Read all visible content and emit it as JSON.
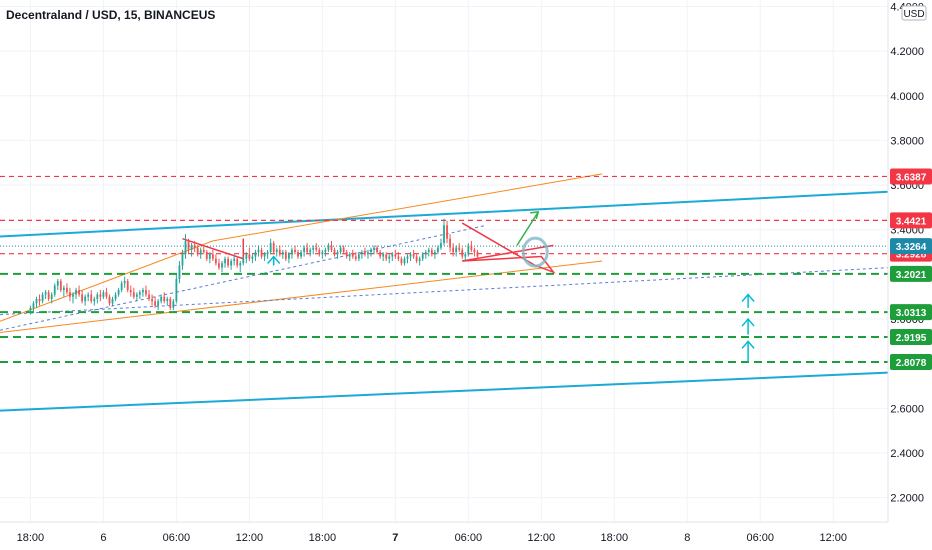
{
  "chart_data": {
    "type": "candlestick",
    "title": "Decentraland / USD, 15, BINANCEUS",
    "currency": "USD",
    "ylim": [
      2.1,
      4.4
    ],
    "y_ticks": [
      "4.4000",
      "4.2000",
      "4.0000",
      "3.8000",
      "3.6000",
      "3.4000",
      "3.0000",
      "2.6000",
      "2.4000",
      "2.2000"
    ],
    "y_tick_values": [
      4.4,
      4.2,
      4.0,
      3.8,
      3.6,
      3.4,
      3.0,
      2.6,
      2.4,
      2.2
    ],
    "x_ticks": [
      {
        "label": "18:00",
        "bar": 0
      },
      {
        "label": "6",
        "bar": 24
      },
      {
        "label": "06:00",
        "bar": 48
      },
      {
        "label": "12:00",
        "bar": 72
      },
      {
        "label": "18:00",
        "bar": 96
      },
      {
        "label": "7",
        "bar": 120
      },
      {
        "label": "06:00",
        "bar": 144
      },
      {
        "label": "12:00",
        "bar": 168
      },
      {
        "label": "18:00",
        "bar": 192
      },
      {
        "label": "8",
        "bar": 216
      },
      {
        "label": "06:00",
        "bar": 240
      },
      {
        "label": "12:00",
        "bar": 264
      }
    ],
    "bar_domain": [
      -10,
      282
    ],
    "bold_x_ticks": [
      "7"
    ],
    "colors": {
      "up": "#26a69a",
      "down": "#ef5350",
      "support_green": "#1e9e3a",
      "resistance_red": "#f23645",
      "channel_cyan": "#1ba9d6",
      "channel_orange": "#f6891f",
      "trend_blue": "#5b7bd6",
      "current_price": "#1e88a8",
      "arrow_green": "#33b249",
      "arrow_cyan": "#00bcd4",
      "grid": "#f0f3fa"
    },
    "candles": [
      [
        3.04,
        3.06,
        3.02,
        3.05
      ],
      [
        3.05,
        3.08,
        3.03,
        3.07
      ],
      [
        3.07,
        3.1,
        3.05,
        3.09
      ],
      [
        3.09,
        3.11,
        3.06,
        3.08
      ],
      [
        3.08,
        3.12,
        3.07,
        3.11
      ],
      [
        3.11,
        3.13,
        3.09,
        3.12
      ],
      [
        3.12,
        3.13,
        3.08,
        3.09
      ],
      [
        3.09,
        3.12,
        3.07,
        3.11
      ],
      [
        3.11,
        3.16,
        3.1,
        3.15
      ],
      [
        3.15,
        3.18,
        3.13,
        3.17
      ],
      [
        3.17,
        3.18,
        3.12,
        3.13
      ],
      [
        3.13,
        3.15,
        3.1,
        3.14
      ],
      [
        3.14,
        3.16,
        3.11,
        3.12
      ],
      [
        3.12,
        3.14,
        3.08,
        3.1
      ],
      [
        3.1,
        3.12,
        3.07,
        3.11
      ],
      [
        3.11,
        3.14,
        3.09,
        3.13
      ],
      [
        3.13,
        3.15,
        3.1,
        3.11
      ],
      [
        3.11,
        3.13,
        3.07,
        3.08
      ],
      [
        3.08,
        3.11,
        3.06,
        3.1
      ],
      [
        3.1,
        3.12,
        3.08,
        3.11
      ],
      [
        3.11,
        3.13,
        3.07,
        3.08
      ],
      [
        3.08,
        3.1,
        3.06,
        3.09
      ],
      [
        3.09,
        3.12,
        3.07,
        3.11
      ],
      [
        3.11,
        3.13,
        3.08,
        3.1
      ],
      [
        3.1,
        3.13,
        3.09,
        3.12
      ],
      [
        3.12,
        3.14,
        3.09,
        3.1
      ],
      [
        3.1,
        3.11,
        3.06,
        3.07
      ],
      [
        3.07,
        3.1,
        3.06,
        3.09
      ],
      [
        3.09,
        3.12,
        3.08,
        3.11
      ],
      [
        3.11,
        3.14,
        3.1,
        3.13
      ],
      [
        3.13,
        3.17,
        3.12,
        3.16
      ],
      [
        3.16,
        3.19,
        3.14,
        3.17
      ],
      [
        3.17,
        3.18,
        3.12,
        3.13
      ],
      [
        3.13,
        3.15,
        3.1,
        3.12
      ],
      [
        3.12,
        3.14,
        3.09,
        3.1
      ],
      [
        3.1,
        3.12,
        3.08,
        3.11
      ],
      [
        3.11,
        3.13,
        3.09,
        3.12
      ],
      [
        3.12,
        3.14,
        3.1,
        3.13
      ],
      [
        3.13,
        3.15,
        3.1,
        3.11
      ],
      [
        3.11,
        3.13,
        3.08,
        3.09
      ],
      [
        3.09,
        3.11,
        3.06,
        3.08
      ],
      [
        3.08,
        3.1,
        3.05,
        3.06
      ],
      [
        3.06,
        3.09,
        3.04,
        3.08
      ],
      [
        3.08,
        3.11,
        3.07,
        3.1
      ],
      [
        3.1,
        3.12,
        3.07,
        3.08
      ],
      [
        3.08,
        3.1,
        3.06,
        3.09
      ],
      [
        3.09,
        3.1,
        3.04,
        3.05
      ],
      [
        3.05,
        3.09,
        3.04,
        3.08
      ],
      [
        3.08,
        3.2,
        3.07,
        3.18
      ],
      [
        3.18,
        3.26,
        3.16,
        3.24
      ],
      [
        3.24,
        3.31,
        3.22,
        3.29
      ],
      [
        3.29,
        3.38,
        3.27,
        3.35
      ],
      [
        3.35,
        3.36,
        3.29,
        3.31
      ],
      [
        3.31,
        3.34,
        3.28,
        3.33
      ],
      [
        3.33,
        3.35,
        3.3,
        3.32
      ],
      [
        3.32,
        3.33,
        3.28,
        3.29
      ],
      [
        3.29,
        3.32,
        3.27,
        3.31
      ],
      [
        3.31,
        3.33,
        3.29,
        3.3
      ],
      [
        3.3,
        3.31,
        3.26,
        3.27
      ],
      [
        3.27,
        3.3,
        3.25,
        3.29
      ],
      [
        3.29,
        3.31,
        3.26,
        3.27
      ],
      [
        3.27,
        3.29,
        3.24,
        3.25
      ],
      [
        3.25,
        3.27,
        3.22,
        3.23
      ],
      [
        3.23,
        3.26,
        3.21,
        3.25
      ],
      [
        3.25,
        3.28,
        3.23,
        3.27
      ],
      [
        3.27,
        3.28,
        3.23,
        3.24
      ],
      [
        3.24,
        3.27,
        3.22,
        3.26
      ],
      [
        3.26,
        3.29,
        3.24,
        3.27
      ],
      [
        3.27,
        3.28,
        3.23,
        3.24
      ],
      [
        3.24,
        3.26,
        3.21,
        3.25
      ],
      [
        3.25,
        3.28,
        3.24,
        3.27
      ],
      [
        3.27,
        3.3,
        3.25,
        3.29
      ],
      [
        3.29,
        3.32,
        3.26,
        3.27
      ],
      [
        3.27,
        3.29,
        3.25,
        3.28
      ],
      [
        3.28,
        3.31,
        3.26,
        3.3
      ],
      [
        3.3,
        3.33,
        3.28,
        3.31
      ],
      [
        3.31,
        3.32,
        3.27,
        3.28
      ],
      [
        3.28,
        3.3,
        3.26,
        3.29
      ],
      [
        3.29,
        3.31,
        3.27,
        3.3
      ],
      [
        3.3,
        3.36,
        3.29,
        3.34
      ],
      [
        3.34,
        3.35,
        3.29,
        3.3
      ],
      [
        3.3,
        3.32,
        3.28,
        3.31
      ],
      [
        3.31,
        3.33,
        3.28,
        3.29
      ],
      [
        3.29,
        3.31,
        3.27,
        3.3
      ],
      [
        3.3,
        3.31,
        3.26,
        3.27
      ],
      [
        3.27,
        3.3,
        3.25,
        3.29
      ],
      [
        3.29,
        3.32,
        3.27,
        3.31
      ],
      [
        3.31,
        3.33,
        3.29,
        3.3
      ],
      [
        3.3,
        3.31,
        3.27,
        3.28
      ],
      [
        3.28,
        3.31,
        3.27,
        3.3
      ],
      [
        3.3,
        3.33,
        3.28,
        3.32
      ],
      [
        3.32,
        3.34,
        3.29,
        3.3
      ],
      [
        3.3,
        3.32,
        3.28,
        3.31
      ],
      [
        3.31,
        3.33,
        3.29,
        3.32
      ],
      [
        3.32,
        3.34,
        3.3,
        3.31
      ],
      [
        3.31,
        3.32,
        3.28,
        3.29
      ],
      [
        3.29,
        3.31,
        3.27,
        3.3
      ],
      [
        3.3,
        3.32,
        3.28,
        3.31
      ],
      [
        3.31,
        3.34,
        3.3,
        3.33
      ],
      [
        3.33,
        3.35,
        3.3,
        3.31
      ],
      [
        3.31,
        3.32,
        3.28,
        3.29
      ],
      [
        3.29,
        3.31,
        3.27,
        3.3
      ],
      [
        3.3,
        3.33,
        3.29,
        3.32
      ],
      [
        3.32,
        3.33,
        3.29,
        3.3
      ],
      [
        3.3,
        3.31,
        3.27,
        3.28
      ],
      [
        3.28,
        3.3,
        3.26,
        3.29
      ],
      [
        3.29,
        3.31,
        3.27,
        3.28
      ],
      [
        3.28,
        3.3,
        3.26,
        3.27
      ],
      [
        3.27,
        3.3,
        3.26,
        3.29
      ],
      [
        3.29,
        3.31,
        3.27,
        3.3
      ],
      [
        3.3,
        3.32,
        3.28,
        3.29
      ],
      [
        3.29,
        3.31,
        3.27,
        3.3
      ],
      [
        3.3,
        3.32,
        3.28,
        3.31
      ],
      [
        3.31,
        3.33,
        3.29,
        3.32
      ],
      [
        3.32,
        3.33,
        3.29,
        3.3
      ],
      [
        3.3,
        3.31,
        3.27,
        3.28
      ],
      [
        3.28,
        3.3,
        3.26,
        3.29
      ],
      [
        3.29,
        3.3,
        3.26,
        3.27
      ],
      [
        3.27,
        3.29,
        3.25,
        3.28
      ],
      [
        3.28,
        3.3,
        3.26,
        3.29
      ],
      [
        3.29,
        3.31,
        3.27,
        3.28
      ],
      [
        3.28,
        3.3,
        3.26,
        3.27
      ],
      [
        3.27,
        3.28,
        3.24,
        3.25
      ],
      [
        3.25,
        3.28,
        3.24,
        3.27
      ],
      [
        3.27,
        3.29,
        3.25,
        3.28
      ],
      [
        3.28,
        3.3,
        3.26,
        3.29
      ],
      [
        3.29,
        3.31,
        3.27,
        3.28
      ],
      [
        3.28,
        3.29,
        3.25,
        3.26
      ],
      [
        3.26,
        3.28,
        3.24,
        3.27
      ],
      [
        3.27,
        3.3,
        3.26,
        3.29
      ],
      [
        3.29,
        3.31,
        3.27,
        3.3
      ],
      [
        3.3,
        3.32,
        3.28,
        3.31
      ],
      [
        3.31,
        3.32,
        3.28,
        3.29
      ],
      [
        3.29,
        3.31,
        3.27,
        3.3
      ],
      [
        3.3,
        3.33,
        3.29,
        3.32
      ],
      [
        3.32,
        3.36,
        3.31,
        3.34
      ],
      [
        3.34,
        3.45,
        3.33,
        3.42
      ],
      [
        3.42,
        3.44,
        3.34,
        3.36
      ],
      [
        3.36,
        3.38,
        3.3,
        3.32
      ],
      [
        3.32,
        3.34,
        3.28,
        3.3
      ],
      [
        3.3,
        3.33,
        3.28,
        3.32
      ],
      [
        3.32,
        3.34,
        3.3,
        3.31
      ],
      [
        3.31,
        3.32,
        3.27,
        3.28
      ],
      [
        3.28,
        3.3,
        3.26,
        3.29
      ],
      [
        3.29,
        3.34,
        3.28,
        3.33
      ],
      [
        3.33,
        3.35,
        3.3,
        3.31
      ],
      [
        3.31,
        3.32,
        3.28,
        3.3
      ],
      [
        3.3,
        3.31,
        3.27,
        3.28
      ]
    ],
    "series": [
      {
        "label": "3.6387",
        "price": 3.6387,
        "color": "#f23645",
        "style": "dashed"
      },
      {
        "label": "3.4421",
        "price": 3.4421,
        "color": "#f23645",
        "style": "dashed"
      },
      {
        "label": "3.2928",
        "price": 3.2928,
        "color": "#f23645",
        "style": "dashed"
      },
      {
        "label": "3.2021",
        "price": 3.2021,
        "color": "#1e9e3a",
        "style": "dashed"
      },
      {
        "label": "3.0313",
        "price": 3.0313,
        "color": "#1e9e3a",
        "style": "dashed"
      },
      {
        "label": "2.9195",
        "price": 2.9195,
        "color": "#1e9e3a",
        "style": "dashed"
      },
      {
        "label": "2.8078",
        "price": 2.8078,
        "color": "#1e9e3a",
        "style": "dashed"
      }
    ],
    "current_price": {
      "label": "3.3264",
      "price": 3.3264
    }
  }
}
